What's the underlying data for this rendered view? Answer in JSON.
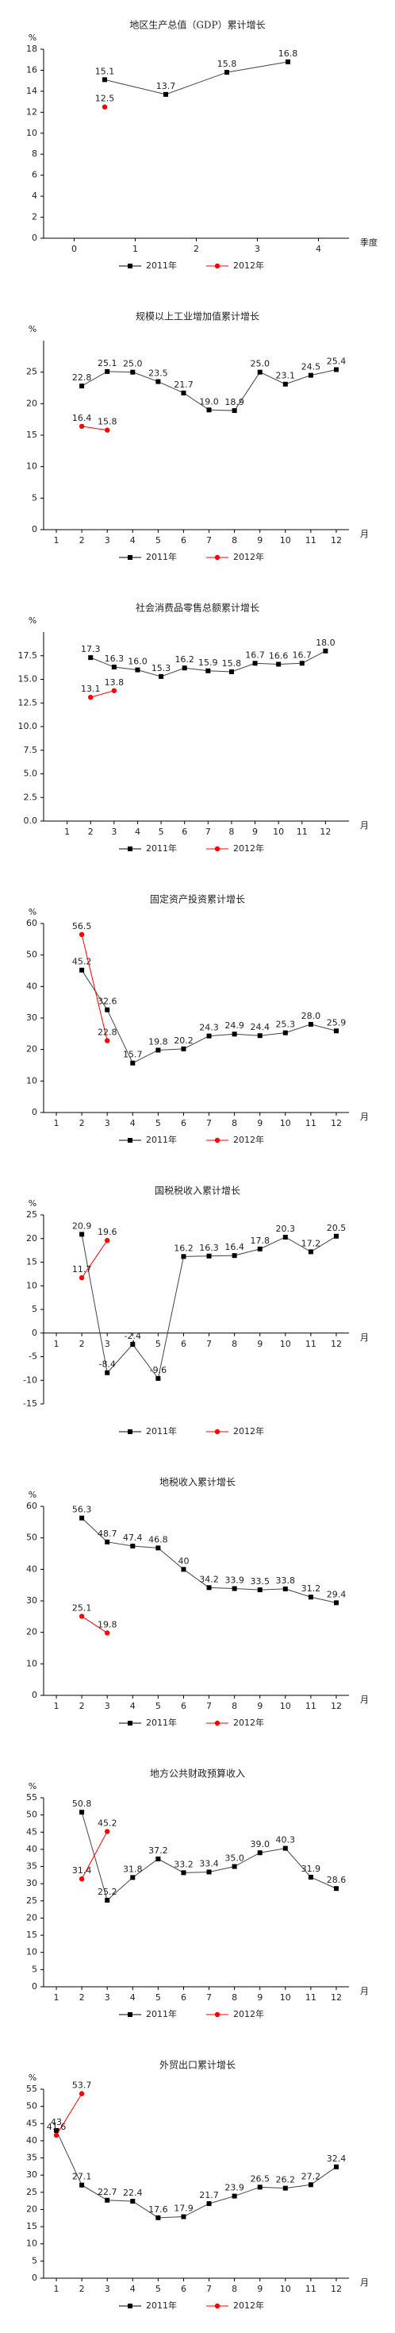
{
  "chart_data": [
    {
      "type": "line",
      "title": "地区生产总值（GDP）累计增长",
      "y_label": "%",
      "x_label": "季度",
      "xlim": [
        -0.5,
        4.5
      ],
      "xticks": [
        0,
        1,
        2,
        3,
        4
      ],
      "ylim": [
        0,
        18
      ],
      "yticks": [
        0,
        2,
        4,
        6,
        8,
        10,
        12,
        14,
        16,
        18
      ],
      "series": [
        {
          "name": "2011年",
          "color": "#000000",
          "marker": "square",
          "x": [
            0.5,
            1.5,
            2.5,
            3.5
          ],
          "values": [
            15.1,
            13.7,
            15.8,
            16.8
          ],
          "value_labels": [
            "15.1",
            "13.7",
            "15.8",
            "16.8"
          ]
        },
        {
          "name": "2012年",
          "color": "#ff0000",
          "marker": "circle",
          "x": [
            0.5
          ],
          "values": [
            12.5
          ],
          "value_labels": [
            "12.5"
          ]
        }
      ]
    },
    {
      "type": "line",
      "title": "规模以上工业增加值累计增长",
      "y_label": "%",
      "x_label": "月",
      "xlim": [
        0.5,
        12.5
      ],
      "xticks": [
        1,
        2,
        3,
        4,
        5,
        6,
        7,
        8,
        9,
        10,
        11,
        12
      ],
      "ylim": [
        0,
        30
      ],
      "yticks": [
        0,
        5,
        10,
        15,
        20,
        25
      ],
      "series": [
        {
          "name": "2011年",
          "color": "#000000",
          "marker": "square",
          "x": [
            2,
            3,
            4,
            5,
            6,
            7,
            8,
            9,
            10,
            11,
            12
          ],
          "values": [
            22.8,
            25.1,
            25.0,
            23.5,
            21.7,
            19.0,
            18.9,
            25.0,
            23.1,
            24.5,
            25.4
          ],
          "value_labels": [
            "22.8",
            "25.1",
            "25.0",
            "23.5",
            "21.7",
            "19.0",
            "18.9",
            "25.0",
            "23.1",
            "24.5",
            "25.4"
          ]
        },
        {
          "name": "2012年",
          "color": "#ff0000",
          "marker": "circle",
          "x": [
            2,
            3
          ],
          "values": [
            16.4,
            15.8
          ],
          "value_labels": [
            "16.4",
            "15.8"
          ]
        }
      ]
    },
    {
      "type": "line",
      "title": "社会消费品零售总额累计增长",
      "y_label": "%",
      "x_label": "月",
      "xlim": [
        0,
        13
      ],
      "xticks": [
        1,
        2,
        3,
        4,
        5,
        6,
        7,
        8,
        9,
        10,
        11,
        12
      ],
      "ylim": [
        0,
        20
      ],
      "yticks": [
        {
          "value": 0,
          "label": "0.0"
        },
        {
          "value": 2.5,
          "label": "2.5"
        },
        {
          "value": 5,
          "label": "5.0"
        },
        {
          "value": 7.5,
          "label": "7.5"
        },
        {
          "value": 10,
          "label": "10.0"
        },
        {
          "value": 12.5,
          "label": "12.5"
        },
        {
          "value": 15,
          "label": "15.0"
        },
        {
          "value": 17.5,
          "label": "17.5"
        }
      ],
      "series": [
        {
          "name": "2011年",
          "color": "#000000",
          "marker": "square",
          "x": [
            2,
            3,
            4,
            5,
            6,
            7,
            8,
            9,
            10,
            11,
            12
          ],
          "values": [
            17.3,
            16.3,
            16.0,
            15.3,
            16.2,
            15.9,
            15.8,
            16.7,
            16.6,
            16.7,
            18.0
          ],
          "value_labels": [
            "17.3",
            "16.3",
            "16.0",
            "15.3",
            "16.2",
            "15.9",
            "15.8",
            "16.7",
            "16.6",
            "16.7",
            "18.0"
          ]
        },
        {
          "name": "2012年",
          "color": "#ff0000",
          "marker": "circle",
          "x": [
            2,
            3
          ],
          "values": [
            13.1,
            13.8
          ],
          "value_labels": [
            "13.1",
            "13.8"
          ]
        }
      ]
    },
    {
      "type": "line",
      "title": "固定资产投资累计增长",
      "y_label": "%",
      "x_label": "月",
      "xlim": [
        0.5,
        12.5
      ],
      "xticks": [
        1,
        2,
        3,
        4,
        5,
        6,
        7,
        8,
        9,
        10,
        11,
        12
      ],
      "ylim": [
        0,
        60
      ],
      "yticks": [
        0,
        10,
        20,
        30,
        40,
        50,
        60
      ],
      "series": [
        {
          "name": "2011年",
          "color": "#000000",
          "marker": "square",
          "x": [
            2,
            3,
            4,
            5,
            6,
            7,
            8,
            9,
            10,
            11,
            12
          ],
          "values": [
            45.2,
            32.6,
            15.7,
            19.8,
            20.2,
            24.3,
            24.9,
            24.4,
            25.3,
            28.0,
            25.9
          ],
          "value_labels": [
            "45.2",
            "32.6",
            "15.7",
            "19.8",
            "20.2",
            "24.3",
            "24.9",
            "24.4",
            "25.3",
            "28.0",
            "25.9"
          ]
        },
        {
          "name": "2012年",
          "color": "#ff0000",
          "marker": "circle",
          "x": [
            2,
            3
          ],
          "values": [
            56.5,
            22.8
          ],
          "value_labels": [
            "56.5",
            "22.8"
          ]
        }
      ]
    },
    {
      "type": "line",
      "title": "国税税收入累计增长",
      "y_label": "%",
      "x_label": "月",
      "xlim": [
        0.5,
        12.5
      ],
      "xticks": [
        1,
        2,
        3,
        4,
        5,
        6,
        7,
        8,
        9,
        10,
        11,
        12
      ],
      "ylim": [
        -15,
        25
      ],
      "yticks": [
        -15,
        -10,
        -5,
        0,
        5,
        10,
        15,
        20,
        25
      ],
      "series": [
        {
          "name": "2011年",
          "color": "#000000",
          "marker": "square",
          "x": [
            2,
            3,
            4,
            5,
            6,
            7,
            8,
            9,
            10,
            11,
            12
          ],
          "values": [
            20.9,
            -8.4,
            -2.4,
            -9.6,
            16.2,
            16.3,
            16.4,
            17.8,
            20.3,
            17.2,
            20.5
          ],
          "value_labels": [
            "20.9",
            "-8.4",
            "-2.4",
            "-9.6",
            "16.2",
            "16.3",
            "16.4",
            "17.8",
            "20.3",
            "17.2",
            "20.5"
          ]
        },
        {
          "name": "2012年",
          "color": "#ff0000",
          "marker": "circle",
          "x": [
            2,
            3
          ],
          "values": [
            11.7,
            19.6
          ],
          "value_labels": [
            "11.7",
            "19.6"
          ]
        }
      ]
    },
    {
      "type": "line",
      "title": "地税收入累计增长",
      "y_label": "%",
      "x_label": "月",
      "xlim": [
        0.5,
        12.5
      ],
      "xticks": [
        1,
        2,
        3,
        4,
        5,
        6,
        7,
        8,
        9,
        10,
        11,
        12
      ],
      "ylim": [
        0,
        60
      ],
      "yticks": [
        0,
        10,
        20,
        30,
        40,
        50,
        60
      ],
      "series": [
        {
          "name": "2011年",
          "color": "#000000",
          "marker": "square",
          "x": [
            2,
            3,
            4,
            5,
            6,
            7,
            8,
            9,
            10,
            11,
            12
          ],
          "values": [
            56.3,
            48.7,
            47.4,
            46.8,
            40,
            34.2,
            33.9,
            33.5,
            33.8,
            31.2,
            29.4
          ],
          "value_labels": [
            "56.3",
            "48.7",
            "47.4",
            "46.8",
            "40",
            "34.2",
            "33.9",
            "33.5",
            "33.8",
            "31.2",
            "29.4"
          ]
        },
        {
          "name": "2012年",
          "color": "#ff0000",
          "marker": "circle",
          "x": [
            2,
            3
          ],
          "values": [
            25.1,
            19.8
          ],
          "value_labels": [
            "25.1",
            "19.8"
          ]
        }
      ]
    },
    {
      "type": "line",
      "title": "地方公共财政预算收入",
      "y_label": "%",
      "x_label": "月",
      "xlim": [
        0.5,
        12.5
      ],
      "xticks": [
        1,
        2,
        3,
        4,
        5,
        6,
        7,
        8,
        9,
        10,
        11,
        12
      ],
      "ylim": [
        0,
        55
      ],
      "yticks": [
        0,
        5,
        10,
        15,
        20,
        25,
        30,
        35,
        40,
        45,
        50,
        55
      ],
      "series": [
        {
          "name": "2011年",
          "color": "#000000",
          "marker": "square",
          "x": [
            2,
            3,
            4,
            5,
            6,
            7,
            8,
            9,
            10,
            11,
            12
          ],
          "values": [
            50.8,
            25.2,
            31.8,
            37.2,
            33.2,
            33.4,
            35.0,
            39.0,
            40.3,
            31.9,
            28.6
          ],
          "value_labels": [
            "50.8",
            "25.2",
            "31.8",
            "37.2",
            "33.2",
            "33.4",
            "35.0",
            "39.0",
            "40.3",
            "31.9",
            "28.6"
          ]
        },
        {
          "name": "2012年",
          "color": "#ff0000",
          "marker": "circle",
          "x": [
            2,
            3
          ],
          "values": [
            31.4,
            45.2
          ],
          "value_labels": [
            "31.4",
            "45.2"
          ]
        }
      ]
    },
    {
      "type": "line",
      "title": "外贸出口累计增长",
      "y_label": "%",
      "x_label": "月",
      "xlim": [
        0.5,
        12.5
      ],
      "xticks": [
        1,
        2,
        3,
        4,
        5,
        6,
        7,
        8,
        9,
        10,
        11,
        12
      ],
      "ylim": [
        0,
        55
      ],
      "yticks": [
        0,
        5,
        10,
        15,
        20,
        25,
        30,
        35,
        40,
        45,
        50,
        55
      ],
      "series": [
        {
          "name": "2011年",
          "color": "#000000",
          "marker": "square",
          "x": [
            1,
            2,
            3,
            4,
            5,
            6,
            7,
            8,
            9,
            10,
            11,
            12
          ],
          "values": [
            43,
            27.1,
            22.7,
            22.4,
            17.6,
            17.9,
            21.7,
            23.9,
            26.5,
            26.2,
            27.2,
            32.4
          ],
          "value_labels": [
            "43",
            "27.1",
            "22.7",
            "22.4",
            "17.6",
            "17.9",
            "21.7",
            "23.9",
            "26.5",
            "26.2",
            "27.2",
            "32.4"
          ]
        },
        {
          "name": "2012年",
          "color": "#ff0000",
          "marker": "circle",
          "x": [
            1,
            2
          ],
          "values": [
            41.6,
            53.7
          ],
          "value_labels": [
            "41.6",
            "53.7"
          ]
        }
      ]
    }
  ]
}
